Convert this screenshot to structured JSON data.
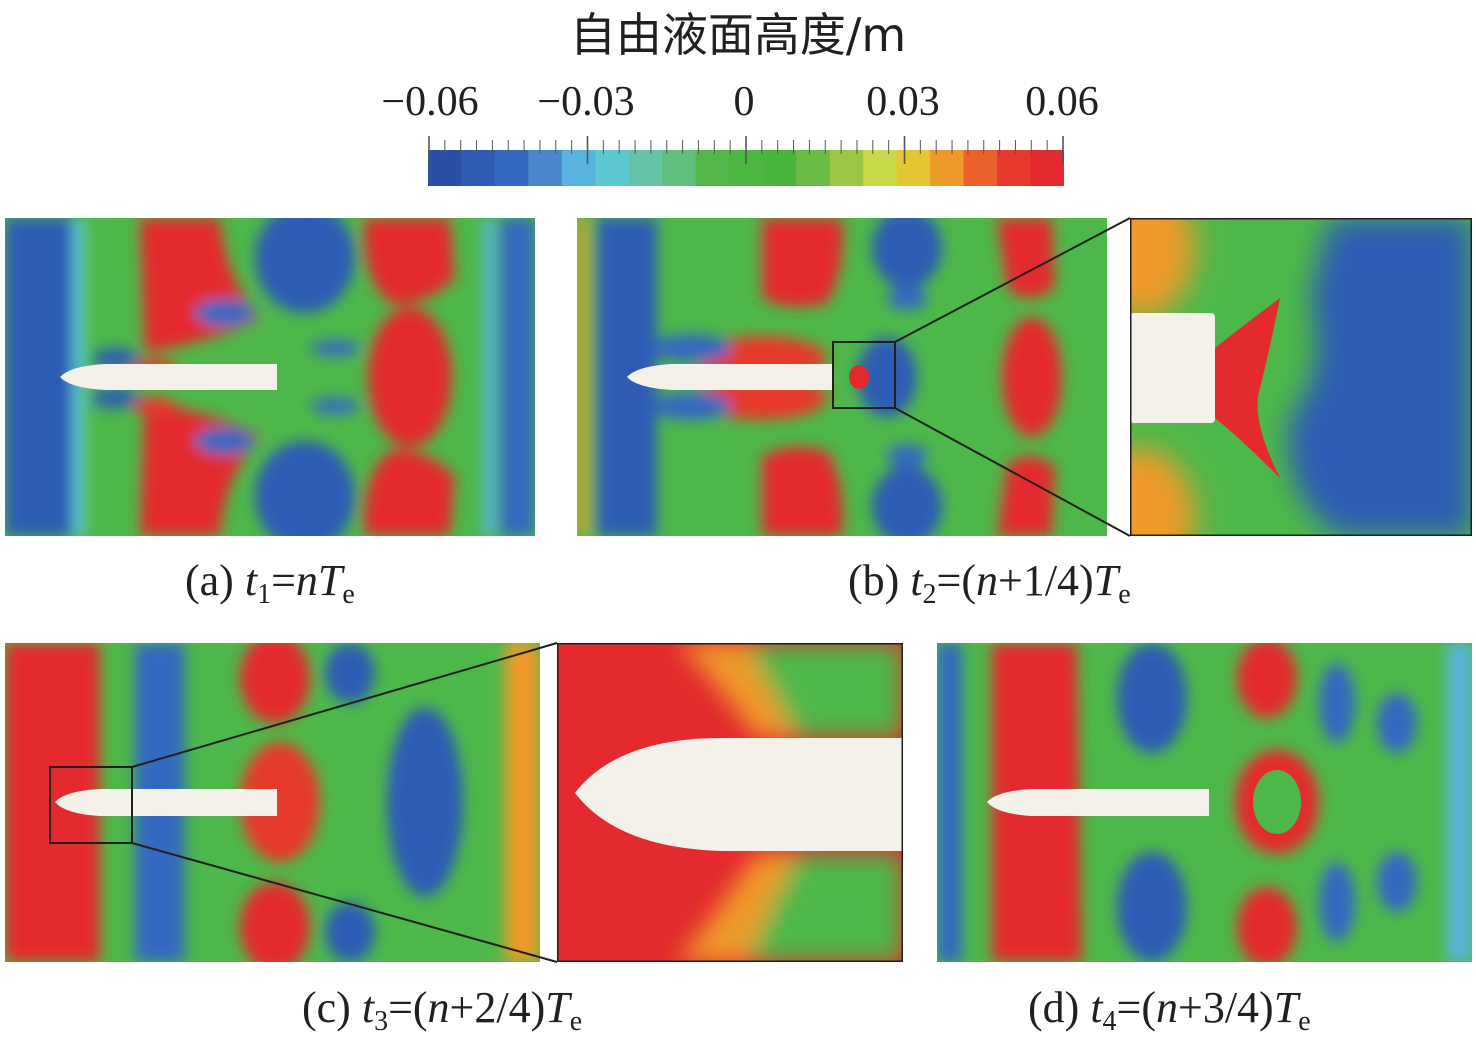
{
  "colorbar": {
    "title": "自由液面高度/m",
    "ticks": [
      "−0.06",
      "−0.03",
      "0",
      "0.03",
      "0.06"
    ],
    "min": -0.06,
    "max": 0.06,
    "colors": [
      "#2b4ea6",
      "#2f5bb5",
      "#3569c1",
      "#4a86cc",
      "#58b4de",
      "#5cc8d2",
      "#63c4a8",
      "#5fbf7d",
      "#52b748",
      "#4cb640",
      "#49b53d",
      "#6bbc44",
      "#9bc744",
      "#c8d94a",
      "#e6c533",
      "#ee9a2b",
      "#e9622b",
      "#e63a2c",
      "#e42a2f"
    ]
  },
  "panels": [
    {
      "id": "a",
      "caption": {
        "label": "(a) ",
        "var": "t",
        "sub": "1",
        "eq": "=",
        "n": "n",
        "rest": "",
        "T": "T",
        "Tsub": "e"
      }
    },
    {
      "id": "b",
      "caption": {
        "label": "(b) ",
        "var": "t",
        "sub": "2",
        "eq": "=(",
        "n": "n",
        "rest": "+1/4)",
        "T": "T",
        "Tsub": "e"
      }
    },
    {
      "id": "c",
      "caption": {
        "label": "(c) ",
        "var": "t",
        "sub": "3",
        "eq": "=(",
        "n": "n",
        "rest": "+2/4)",
        "T": "T",
        "Tsub": "e"
      }
    },
    {
      "id": "d",
      "caption": {
        "label": "(d) ",
        "var": "t",
        "sub": "4",
        "eq": "=(",
        "n": "n",
        "rest": "+3/4)",
        "T": "T",
        "Tsub": "e"
      }
    }
  ]
}
